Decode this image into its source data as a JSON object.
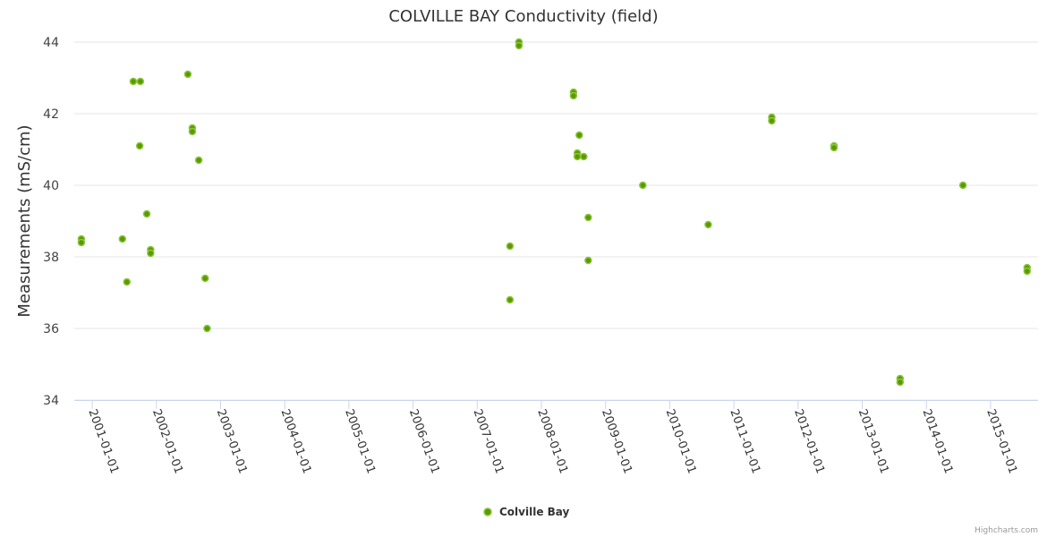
{
  "chart_data": {
    "type": "scatter",
    "title": "COLVILLE BAY Conductivity (field)",
    "xlabel": "",
    "ylabel": "Measurements (mS/cm)",
    "ylim": [
      34,
      44
    ],
    "xlim": [
      2000.72,
      2015.74
    ],
    "yticks": [
      "34",
      "36",
      "38",
      "40",
      "42",
      "44"
    ],
    "xticks": [
      "2001-01-01",
      "2002-01-01",
      "2003-01-01",
      "2004-01-01",
      "2005-01-01",
      "2006-01-01",
      "2007-01-01",
      "2008-01-01",
      "2009-01-01",
      "2010-01-01",
      "2011-01-01",
      "2012-01-01",
      "2013-01-01",
      "2014-01-01",
      "2015-01-01"
    ],
    "grid": true,
    "legend_position": "bottom-center",
    "series": [
      {
        "name": "Colville Bay",
        "color": "#5a9a00",
        "points": [
          [
            2000.83,
            38.5
          ],
          [
            2000.83,
            38.4
          ],
          [
            2001.47,
            38.5
          ],
          [
            2001.54,
            37.3
          ],
          [
            2001.64,
            42.9
          ],
          [
            2001.75,
            42.9
          ],
          [
            2001.74,
            41.1
          ],
          [
            2001.85,
            39.2
          ],
          [
            2001.91,
            38.2
          ],
          [
            2001.91,
            38.1
          ],
          [
            2002.49,
            43.1
          ],
          [
            2002.56,
            41.6
          ],
          [
            2002.56,
            41.5
          ],
          [
            2002.66,
            40.7
          ],
          [
            2002.76,
            37.4
          ],
          [
            2002.79,
            36.0
          ],
          [
            2007.51,
            38.3
          ],
          [
            2007.51,
            36.8
          ],
          [
            2007.65,
            44.0
          ],
          [
            2007.65,
            43.9
          ],
          [
            2008.5,
            42.6
          ],
          [
            2008.5,
            42.5
          ],
          [
            2008.59,
            41.4
          ],
          [
            2008.56,
            40.9
          ],
          [
            2008.56,
            40.8
          ],
          [
            2008.66,
            40.8
          ],
          [
            2008.73,
            39.1
          ],
          [
            2008.73,
            37.9
          ],
          [
            2009.58,
            40.0
          ],
          [
            2010.6,
            38.9
          ],
          [
            2011.59,
            41.9
          ],
          [
            2011.59,
            41.8
          ],
          [
            2012.56,
            41.1
          ],
          [
            2012.56,
            41.05
          ],
          [
            2013.59,
            34.6
          ],
          [
            2013.59,
            34.5
          ],
          [
            2014.57,
            40.0
          ],
          [
            2015.57,
            37.7
          ],
          [
            2015.57,
            37.6
          ]
        ]
      }
    ],
    "credits": "Highcharts.com"
  }
}
